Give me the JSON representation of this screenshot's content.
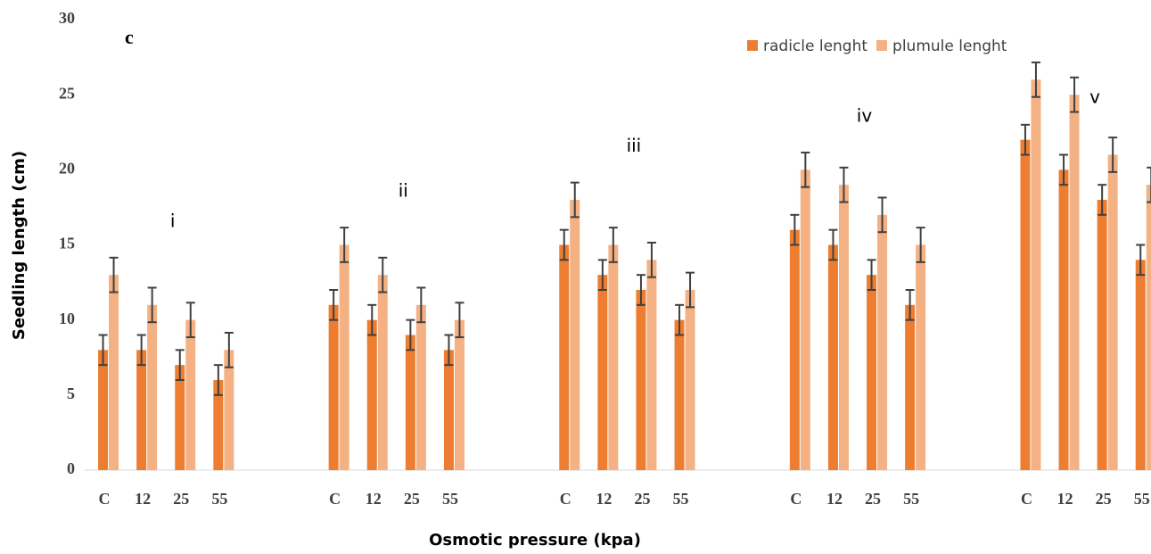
{
  "chart_data": {
    "type": "bar",
    "panel_label": "c",
    "x_label": "Osmotic pressure (kpa)",
    "y_label": "Seedling length (cm)",
    "categories": [
      "C",
      "12",
      "25",
      "55",
      null,
      null,
      "C",
      "12",
      "25",
      "55",
      null,
      null,
      "C",
      "12",
      "25",
      "55",
      null,
      null,
      "C",
      "12",
      "25",
      "55",
      null,
      null,
      "C",
      "12",
      "25",
      "55"
    ],
    "annotations": [
      "i",
      "ii",
      "iii",
      "iv",
      "v"
    ],
    "series": [
      {
        "name": "radicle lenght",
        "color": "#ed7d31",
        "values": [
          8,
          8,
          7,
          6,
          null,
          null,
          11,
          10,
          9,
          8,
          null,
          null,
          15,
          13,
          12,
          10,
          null,
          null,
          16,
          15,
          13,
          11,
          null,
          null,
          22,
          20,
          18,
          14
        ],
        "errors": [
          1,
          1,
          1,
          1,
          null,
          null,
          1,
          1,
          1,
          1,
          null,
          null,
          1,
          1,
          1,
          1,
          null,
          null,
          1,
          1,
          1,
          1,
          null,
          null,
          1,
          1,
          1,
          1
        ]
      },
      {
        "name": "plumule lenght",
        "color": "#f4b183",
        "values": [
          13,
          11,
          10,
          8,
          null,
          null,
          15,
          13,
          11,
          10,
          null,
          null,
          18,
          15,
          14,
          12,
          null,
          null,
          20,
          19,
          17,
          15,
          null,
          null,
          26,
          25,
          21,
          19
        ],
        "errors": [
          1.15,
          1.15,
          1.15,
          1.15,
          null,
          null,
          1.15,
          1.15,
          1.15,
          1.15,
          null,
          null,
          1.15,
          1.15,
          1.15,
          1.15,
          null,
          null,
          1.15,
          1.15,
          1.15,
          1.15,
          null,
          null,
          1.15,
          1.15,
          1.15,
          1.15
        ]
      }
    ],
    "ylim": [
      0,
      30
    ],
    "yticks": [
      0,
      5,
      10,
      15,
      20,
      25,
      30
    ],
    "grid": false,
    "legend": "upper right"
  }
}
